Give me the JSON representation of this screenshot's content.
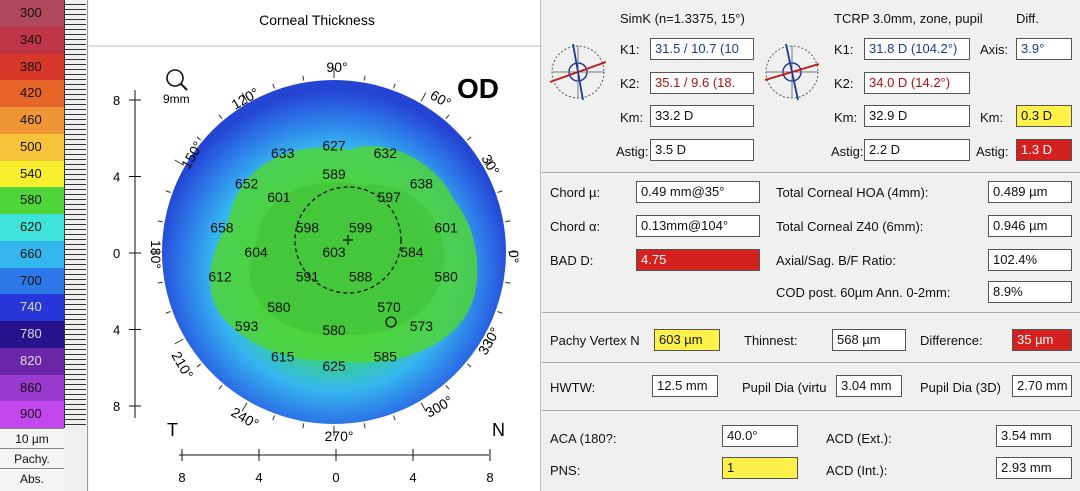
{
  "scale": {
    "rows": [
      {
        "value": "300",
        "color": "#b0485b"
      },
      {
        "value": "340",
        "color": "#c03545"
      },
      {
        "value": "380",
        "color": "#d8382a"
      },
      {
        "value": "420",
        "color": "#e8652a"
      },
      {
        "value": "460",
        "color": "#f09535"
      },
      {
        "value": "500",
        "color": "#f6c33a"
      },
      {
        "value": "540",
        "color": "#f7ef2e"
      },
      {
        "value": "580",
        "color": "#4fd43a"
      },
      {
        "value": "620",
        "color": "#3fe3d9"
      },
      {
        "value": "660",
        "color": "#35b6ef"
      },
      {
        "value": "700",
        "color": "#2d78e8"
      },
      {
        "value": "740",
        "color": "#2636d8"
      },
      {
        "value": "780",
        "color": "#25128c"
      },
      {
        "value": "820",
        "color": "#6a25a8"
      },
      {
        "value": "860",
        "color": "#9b3ad0"
      },
      {
        "value": "900",
        "color": "#c248ee"
      }
    ],
    "unit": "10 µm",
    "mode": "Pachy.",
    "scale_type": "Abs."
  },
  "map": {
    "title": "Corneal Thickness",
    "eye": "OD",
    "zoom_label": "9mm",
    "temporal": "T",
    "nasal": "N",
    "angles": {
      "a90": "90°",
      "a60": "60°",
      "a30": "30°",
      "a0": "0°",
      "a330": "330°",
      "a300": "300°",
      "a270": "270°",
      "a240": "240°",
      "a210": "210°",
      "a180": "180°",
      "a150": "150°",
      "a120": "120°"
    },
    "x_ticks": [
      "8",
      "4",
      "0",
      "4",
      "8"
    ],
    "y_ticks": [
      "8",
      "4",
      "0",
      "4",
      "8"
    ],
    "values": [
      {
        "v": "627",
        "x": 0,
        "y": -5.6
      },
      {
        "v": "633",
        "x": -2.7,
        "y": -5.2
      },
      {
        "v": "632",
        "x": 2.7,
        "y": -5.2
      },
      {
        "v": "652",
        "x": -4.6,
        "y": -3.6
      },
      {
        "v": "589",
        "x": 0,
        "y": -4.1
      },
      {
        "v": "638",
        "x": 4.6,
        "y": -3.6
      },
      {
        "v": "601",
        "x": -2.9,
        "y": -2.9
      },
      {
        "v": "597",
        "x": 2.9,
        "y": -2.9
      },
      {
        "v": "658",
        "x": -5.9,
        "y": -1.3
      },
      {
        "v": "598",
        "x": -1.4,
        "y": -1.3
      },
      {
        "v": "599",
        "x": 1.4,
        "y": -1.3
      },
      {
        "v": "601",
        "x": 5.9,
        "y": -1.3
      },
      {
        "v": "604",
        "x": -4.1,
        "y": 0
      },
      {
        "v": "603",
        "x": 0,
        "y": 0
      },
      {
        "v": "584",
        "x": 4.1,
        "y": 0
      },
      {
        "v": "612",
        "x": -6.0,
        "y": 1.3
      },
      {
        "v": "591",
        "x": -1.4,
        "y": 1.3
      },
      {
        "v": "588",
        "x": 1.4,
        "y": 1.3
      },
      {
        "v": "580",
        "x": 5.9,
        "y": 1.3
      },
      {
        "v": "580",
        "x": -2.9,
        "y": 2.9
      },
      {
        "v": "570",
        "x": 2.9,
        "y": 2.9
      },
      {
        "v": "593",
        "x": -4.6,
        "y": 3.9
      },
      {
        "v": "580",
        "x": 0,
        "y": 4.1
      },
      {
        "v": "573",
        "x": 4.6,
        "y": 3.9
      },
      {
        "v": "615",
        "x": -2.7,
        "y": 5.5
      },
      {
        "v": "585",
        "x": 2.7,
        "y": 5.5
      },
      {
        "v": "625",
        "x": 0,
        "y": 6.0
      }
    ]
  },
  "simk": {
    "header": "SimK (n=1.3375, 15°)",
    "k1_label": "K1:",
    "k1": "31.5 / 10.7 (10",
    "k2_label": "K2:",
    "k2": "35.1 / 9.6 (18.",
    "km_label": "Km:",
    "km": "33.2 D",
    "astig_label": "Astig:",
    "astig": "3.5 D"
  },
  "tcrp": {
    "header": "TCRP 3.0mm, zone, pupil",
    "k1_label": "K1:",
    "k1": "31.8 D (104.2°)",
    "k2_label": "K2:",
    "k2": "34.0 D (14.2°)",
    "km_label": "Km:",
    "km": "32.9 D",
    "astig_label": "Astig:",
    "astig": "2.2 D"
  },
  "diff": {
    "header": "Diff.",
    "axis_label": "Axis:",
    "axis": "3.9°",
    "km_label": "Km:",
    "km": "0.3 D",
    "astig_label": "Astig:",
    "astig": "1.3 D"
  },
  "chord": {
    "mu_label": "Chord µ:",
    "mu": "0.49 mm@35°",
    "alpha_label": "Chord α:",
    "alpha": "0.13mm@104°",
    "bad_label": "BAD D:",
    "bad": "4.75",
    "hoa_label": "Total Corneal HOA (4mm):",
    "hoa": "0.489 µm",
    "z40_label": "Total Corneal Z40 (6mm):",
    "z40": "0.946 µm",
    "ratio_label": "Axial/Sag. B/F Ratio:",
    "ratio": "102.4%",
    "cod_label": "COD post. 60µm Ann. 0-2mm:",
    "cod": "8.9%"
  },
  "pachy": {
    "vertex_label": "Pachy Vertex N",
    "vertex": "603 µm",
    "thinnest_label": "Thinnest:",
    "thinnest": "568 µm",
    "difference_label": "Difference:",
    "difference": "35 µm"
  },
  "dims": {
    "hwtw_label": "HWTW:",
    "hwtw": "12.5 mm",
    "pupil_virt_label": "Pupil Dia (virtu",
    "pupil_virt": "3.04 mm",
    "pupil_3d_label": "Pupil Dia (3D)",
    "pupil_3d": "2.70 mm"
  },
  "chamber": {
    "aca_label": "ACA (180?:",
    "aca": "40.0°",
    "pns_label": "PNS:",
    "pns": "1",
    "acd_ext_label": "ACD (Ext.):",
    "acd_ext": "3.54 mm",
    "acd_int_label": "ACD (Int.):",
    "acd_int": "2.93 mm"
  }
}
